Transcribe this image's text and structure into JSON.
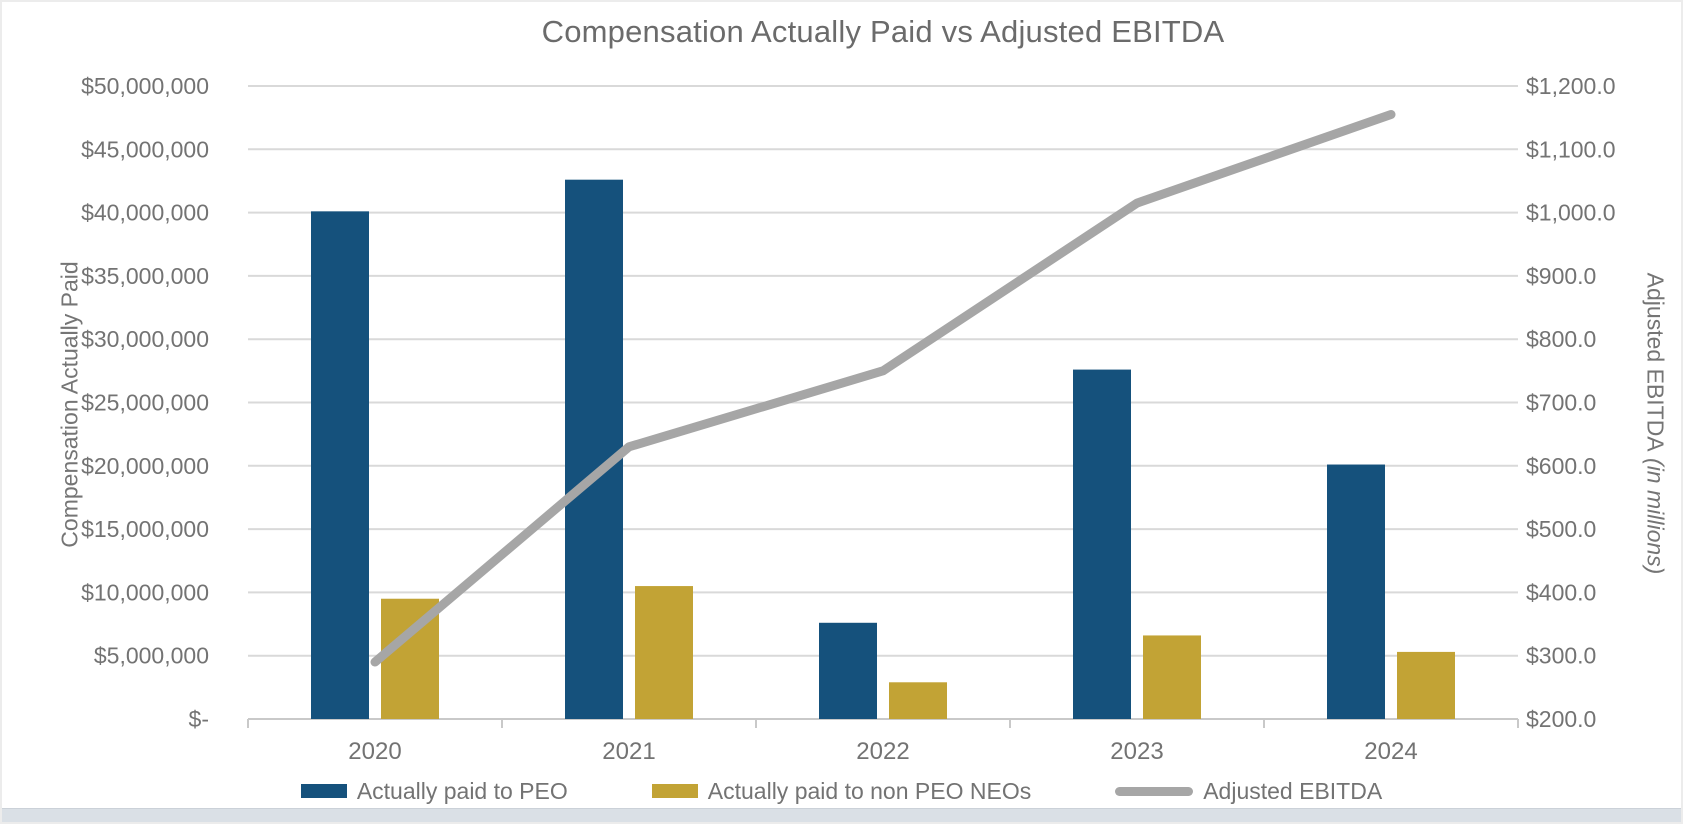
{
  "chart_data": {
    "type": "combo_bar_line",
    "title": "Compensation Actually Paid vs Adjusted EBITDA",
    "categories": [
      "2020",
      "2021",
      "2022",
      "2023",
      "2024"
    ],
    "series": [
      {
        "name": "Actually paid to PEO",
        "type": "bar",
        "axis": "left",
        "color": "#15517C",
        "values": [
          40100000,
          42600000,
          7600000,
          27600000,
          20100000
        ]
      },
      {
        "name": "Actually paid to non PEO NEOs",
        "type": "bar",
        "axis": "left",
        "color": "#C2A335",
        "values": [
          9500000,
          10500000,
          2900000,
          6600000,
          5300000
        ]
      },
      {
        "name": "Adjusted EBITDA",
        "type": "line",
        "axis": "right",
        "color": "#A6A6A6",
        "values": [
          290,
          630,
          750,
          1015,
          1155
        ]
      }
    ],
    "left_axis": {
      "title": "Compensation Actually Paid",
      "min": 0,
      "max": 50000000,
      "step": 5000000,
      "tick_labels": [
        "$50,000,000",
        "$45,000,000",
        "$40,000,000",
        "$35,000,000",
        "$30,000,000",
        "$25,000,000",
        "$20,000,000",
        "$15,000,000",
        "$10,000,000",
        "$5,000,000",
        "$-"
      ]
    },
    "right_axis": {
      "title": "Adjusted EBITDA",
      "title_note": "(in millions)",
      "min": 200,
      "max": 1200,
      "step": 100,
      "tick_labels": [
        "$1,200.0",
        "$1,100.0",
        "$1,000.0",
        "$900.0",
        "$800.0",
        "$700.0",
        "$600.0",
        "$500.0",
        "$400.0",
        "$300.0",
        "$200.0"
      ]
    },
    "legend_position": "bottom",
    "grid": "horizontal",
    "styles": {
      "gridline_color": "#D9D9D9",
      "axis_line_color": "#C9C9C9",
      "tick_text_color": "#737373",
      "title_color": "#6B6B6B"
    }
  }
}
